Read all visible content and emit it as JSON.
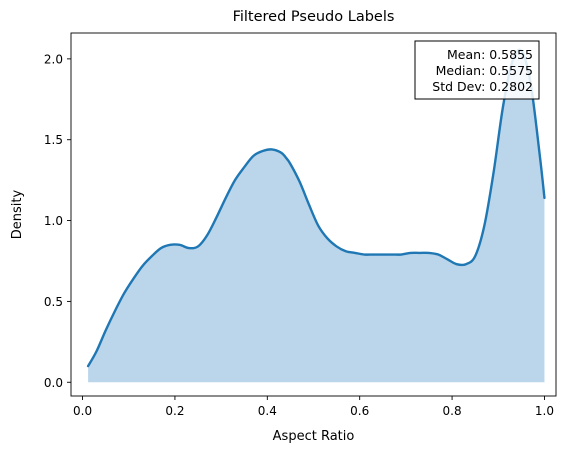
{
  "chart_data": {
    "type": "area",
    "title": "Filtered Pseudo Labels",
    "xlabel": "Aspect Ratio",
    "ylabel": "Density",
    "xlim": [
      -0.025,
      1.025
    ],
    "ylim": [
      -0.085,
      2.16
    ],
    "xticks": [
      0.0,
      0.2,
      0.4,
      0.6,
      0.8,
      1.0
    ],
    "xtick_labels": [
      "0.0",
      "0.2",
      "0.4",
      "0.6",
      "0.8",
      "1.0"
    ],
    "yticks": [
      0.0,
      0.5,
      1.0,
      1.5,
      2.0
    ],
    "ytick_labels": [
      "0.0",
      "0.5",
      "1.0",
      "1.5",
      "2.0"
    ],
    "grid": false,
    "series": [
      {
        "x": [
          0.012,
          0.03,
          0.05,
          0.07,
          0.09,
          0.11,
          0.13,
          0.15,
          0.17,
          0.19,
          0.21,
          0.23,
          0.25,
          0.27,
          0.29,
          0.31,
          0.33,
          0.35,
          0.37,
          0.39,
          0.41,
          0.43,
          0.44,
          0.45,
          0.47,
          0.49,
          0.51,
          0.53,
          0.55,
          0.57,
          0.59,
          0.61,
          0.63,
          0.65,
          0.67,
          0.69,
          0.71,
          0.73,
          0.75,
          0.77,
          0.79,
          0.81,
          0.83,
          0.85,
          0.87,
          0.89,
          0.91,
          0.93,
          0.95,
          0.97,
          0.99,
          1.0
        ],
        "y": [
          0.1,
          0.19,
          0.32,
          0.44,
          0.55,
          0.64,
          0.72,
          0.78,
          0.83,
          0.85,
          0.85,
          0.83,
          0.84,
          0.91,
          1.02,
          1.14,
          1.25,
          1.33,
          1.4,
          1.43,
          1.44,
          1.42,
          1.39,
          1.35,
          1.24,
          1.1,
          0.97,
          0.89,
          0.84,
          0.81,
          0.8,
          0.79,
          0.79,
          0.79,
          0.79,
          0.79,
          0.8,
          0.8,
          0.8,
          0.79,
          0.76,
          0.73,
          0.73,
          0.78,
          0.97,
          1.3,
          1.7,
          1.98,
          2.05,
          1.85,
          1.4,
          1.14
        ],
        "line_color": "#1f77b4",
        "fill_color": "#bbd6ea"
      }
    ],
    "annotation": {
      "position": "top-right",
      "lines": [
        "Mean: 0.5855",
        "Median: 0.5575",
        "Std Dev: 0.2802"
      ]
    }
  }
}
